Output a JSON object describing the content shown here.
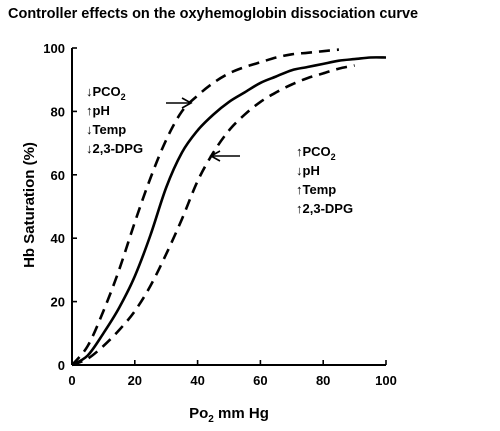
{
  "chart_data": {
    "type": "line",
    "title": "Controller effects on the oxyhemoglobin dissociation curve",
    "xlabel_main": "Po",
    "xlabel_sub": "2",
    "xlabel_rest": " mm Hg",
    "ylabel": "Hb Saturation (%)",
    "xlim": [
      0,
      100
    ],
    "ylim": [
      0,
      100
    ],
    "xticks": [
      "0",
      "20",
      "40",
      "60",
      "80",
      "100"
    ],
    "yticks": [
      "0",
      "20",
      "40",
      "60",
      "80",
      "100"
    ],
    "grid": false,
    "series": [
      {
        "style": "solid",
        "points": [
          [
            0,
            0
          ],
          [
            5,
            3
          ],
          [
            10,
            10
          ],
          [
            15,
            18
          ],
          [
            20,
            28
          ],
          [
            25,
            41
          ],
          [
            30,
            56
          ],
          [
            35,
            67
          ],
          [
            40,
            74
          ],
          [
            45,
            79
          ],
          [
            50,
            83
          ],
          [
            55,
            86
          ],
          [
            60,
            89
          ],
          [
            65,
            91
          ],
          [
            70,
            93
          ],
          [
            75,
            94
          ],
          [
            80,
            95
          ],
          [
            85,
            96
          ],
          [
            90,
            96.5
          ],
          [
            95,
            97
          ],
          [
            100,
            97
          ]
        ]
      },
      {
        "style": "dashed",
        "points": [
          [
            0,
            0
          ],
          [
            5,
            6
          ],
          [
            10,
            17
          ],
          [
            15,
            30
          ],
          [
            20,
            45
          ],
          [
            25,
            59
          ],
          [
            30,
            71
          ],
          [
            35,
            80
          ],
          [
            40,
            85
          ],
          [
            45,
            89
          ],
          [
            50,
            92
          ],
          [
            55,
            94
          ],
          [
            60,
            95.5
          ],
          [
            65,
            97
          ],
          [
            70,
            98
          ],
          [
            75,
            98.5
          ],
          [
            80,
            99
          ],
          [
            85,
            99.5
          ]
        ]
      },
      {
        "style": "dashed",
        "points": [
          [
            0,
            0
          ],
          [
            5,
            2
          ],
          [
            10,
            6
          ],
          [
            15,
            11
          ],
          [
            20,
            17
          ],
          [
            25,
            25
          ],
          [
            30,
            35
          ],
          [
            35,
            46
          ],
          [
            40,
            58
          ],
          [
            45,
            67
          ],
          [
            50,
            74
          ],
          [
            55,
            79
          ],
          [
            60,
            83
          ],
          [
            65,
            86
          ],
          [
            70,
            88.5
          ],
          [
            75,
            90.5
          ],
          [
            80,
            92
          ],
          [
            85,
            93.5
          ],
          [
            90,
            94.5
          ]
        ]
      }
    ],
    "annotations": {
      "left_group": [
        {
          "arrow": "↓",
          "text": "PCO",
          "sub": "2"
        },
        {
          "arrow": "↑",
          "text": "pH",
          "sub": ""
        },
        {
          "arrow": "↓",
          "text": "Temp",
          "sub": ""
        },
        {
          "arrow": "↓",
          "text": "2,3-DPG",
          "sub": ""
        }
      ],
      "right_group": [
        {
          "arrow": "↑",
          "text": "PCO",
          "sub": "2"
        },
        {
          "arrow": "↓",
          "text": "pH",
          "sub": ""
        },
        {
          "arrow": "↑",
          "text": "Temp",
          "sub": ""
        },
        {
          "arrow": "↑",
          "text": "2,3-DPG",
          "sub": ""
        }
      ]
    }
  }
}
